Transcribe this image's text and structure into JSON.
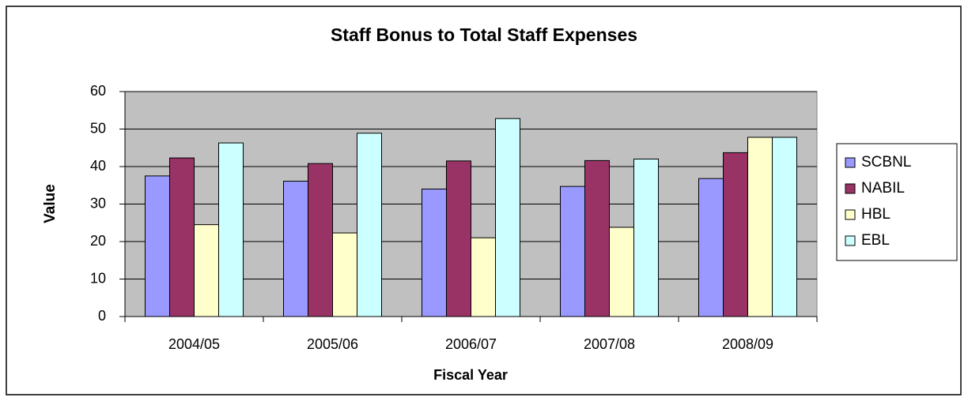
{
  "chart_data": {
    "type": "bar",
    "title": "Staff Bonus to Total Staff Expenses",
    "x_label": "Fiscal Year",
    "y_label": "Value",
    "categories": [
      "2004/05",
      "2005/06",
      "2006/07",
      "2007/08",
      "2008/09"
    ],
    "series": [
      {
        "name": "SCBNL",
        "color": "#9999ff",
        "values": [
          37.5,
          36.1,
          34,
          34.7,
          36.8
        ]
      },
      {
        "name": "NABIL",
        "color": "#993366",
        "values": [
          42.3,
          40.8,
          41.5,
          41.6,
          43.7
        ]
      },
      {
        "name": "HBL",
        "color": "#ffffcc",
        "values": [
          24.5,
          22.3,
          21,
          23.8,
          47.8
        ]
      },
      {
        "name": "EBL",
        "color": "#ccffff",
        "values": [
          46.3,
          48.9,
          52.8,
          42,
          47.8
        ]
      }
    ],
    "ylim": [
      0,
      60
    ],
    "yticks": [
      0,
      10,
      20,
      30,
      40,
      50,
      60
    ],
    "grid": true,
    "legend": "right"
  }
}
